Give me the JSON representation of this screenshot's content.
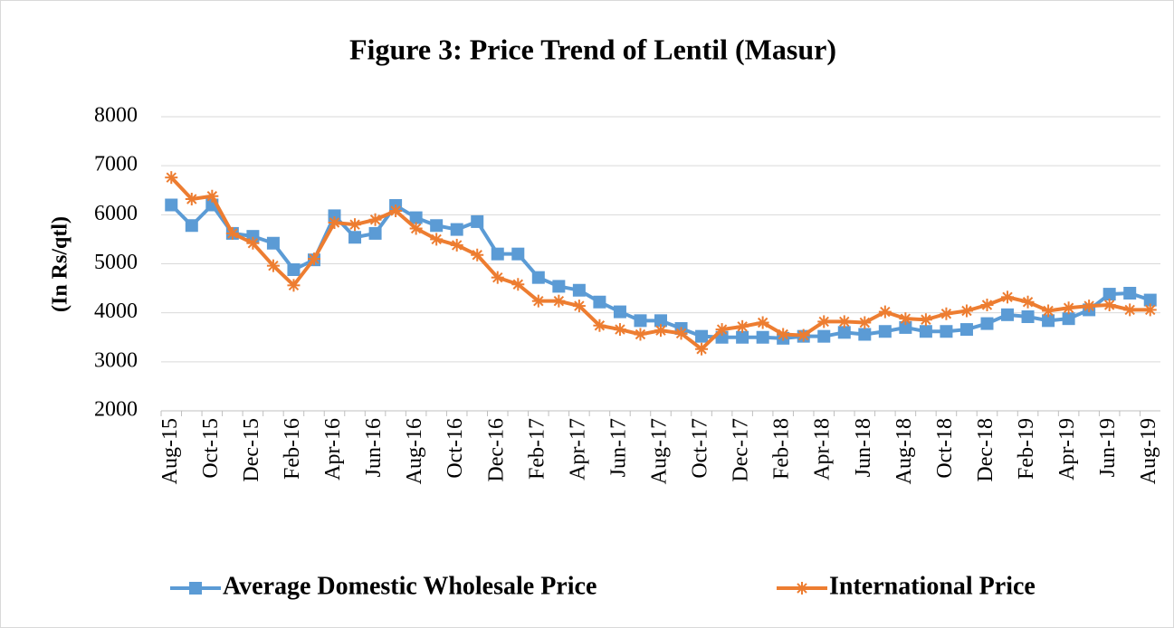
{
  "chart_data": {
    "type": "line",
    "title": "Figure 3: Price Trend of Lentil (Masur)",
    "y_label": "(In Rs/qtl)",
    "categories": [
      "Aug-15",
      null,
      "Oct-15",
      null,
      "Dec-15",
      null,
      "Feb-16",
      null,
      "Apr-16",
      null,
      "Jun-16",
      null,
      "Aug-16",
      null,
      "Oct-16",
      null,
      "Dec-16",
      null,
      "Feb-17",
      null,
      "Apr-17",
      null,
      "Jun-17",
      null,
      "Aug-17",
      null,
      "Oct-17",
      null,
      "Dec-17",
      null,
      "Feb-18",
      null,
      "Apr-18",
      null,
      "Jun-18",
      null,
      "Aug-18",
      null,
      "Oct-18",
      null,
      "Dec-18",
      null,
      "Feb-19",
      null,
      "Apr-19",
      null,
      "Jun-19",
      null,
      "Aug-19"
    ],
    "series": [
      {
        "name": "Average Domestic Wholesale Price",
        "color": "#5b9bd5",
        "marker": "square",
        "values": [
          6200,
          5780,
          6200,
          5620,
          5560,
          5420,
          4880,
          5080,
          5980,
          5540,
          5620,
          6190,
          5940,
          5780,
          5700,
          5860,
          5200,
          5200,
          4720,
          4540,
          4460,
          4220,
          4020,
          3840,
          3840,
          3680,
          3520,
          3500,
          3500,
          3500,
          3480,
          3520,
          3520,
          3600,
          3560,
          3620,
          3700,
          3620,
          3620,
          3660,
          3780,
          3960,
          3920,
          3840,
          3880,
          4060,
          4380,
          4400,
          4260
        ]
      },
      {
        "name": "International Price",
        "color": "#ed7d31",
        "marker": "asterisk",
        "values": [
          6760,
          6320,
          6380,
          5620,
          5420,
          4960,
          4560,
          5100,
          5840,
          5800,
          5900,
          6080,
          5720,
          5500,
          5380,
          5180,
          4720,
          4580,
          4240,
          4240,
          4140,
          3740,
          3660,
          3560,
          3640,
          3580,
          3260,
          3660,
          3720,
          3800,
          3560,
          3540,
          3820,
          3820,
          3800,
          4020,
          3880,
          3860,
          3980,
          4040,
          4160,
          4320,
          4220,
          4040,
          4100,
          4140,
          4160,
          4060,
          4060
        ]
      }
    ],
    "ylim": [
      2000,
      8000
    ],
    "yticks": [
      2000,
      3000,
      4000,
      5000,
      6000,
      7000,
      8000
    ],
    "grid": true,
    "legend": "bottom"
  }
}
